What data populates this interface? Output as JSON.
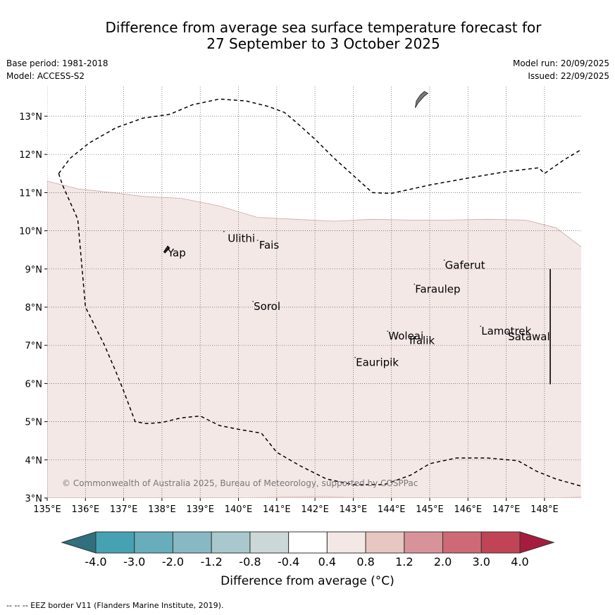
{
  "title": {
    "line1": "Difference from average sea surface temperature forecast for",
    "line2": "27 September to 3 October 2025"
  },
  "meta": {
    "base_period": "Base period: 1981-2018",
    "model": "Model: ACCESS-S2",
    "model_run": "Model run: 20/09/2025",
    "issued": "Issued: 22/09/2025"
  },
  "map": {
    "lon_range": [
      135,
      149
    ],
    "lat_range": [
      3,
      13.8
    ],
    "lon_ticks": [
      {
        "v": 135,
        "label": "135°E"
      },
      {
        "v": 136,
        "label": "136°E"
      },
      {
        "v": 137,
        "label": "137°E"
      },
      {
        "v": 138,
        "label": "138°E"
      },
      {
        "v": 139,
        "label": "139°E"
      },
      {
        "v": 140,
        "label": "140°E"
      },
      {
        "v": 141,
        "label": "141°E"
      },
      {
        "v": 142,
        "label": "142°E"
      },
      {
        "v": 143,
        "label": "143°E"
      },
      {
        "v": 144,
        "label": "144°E"
      },
      {
        "v": 145,
        "label": "145°E"
      },
      {
        "v": 146,
        "label": "146°E"
      },
      {
        "v": 147,
        "label": "147°E"
      },
      {
        "v": 148,
        "label": "148°E"
      }
    ],
    "lat_ticks": [
      {
        "v": 3,
        "label": "3°N"
      },
      {
        "v": 4,
        "label": "4°N"
      },
      {
        "v": 5,
        "label": "5°N"
      },
      {
        "v": 6,
        "label": "6°N"
      },
      {
        "v": 7,
        "label": "7°N"
      },
      {
        "v": 8,
        "label": "8°N"
      },
      {
        "v": 9,
        "label": "9°N"
      },
      {
        "v": 10,
        "label": "10°N"
      },
      {
        "v": 11,
        "label": "11°N"
      },
      {
        "v": 12,
        "label": "12°N"
      },
      {
        "v": 13,
        "label": "13°N"
      }
    ],
    "anomaly_region": {
      "category": "0.4 to 0.8",
      "color": "#f4e8e6",
      "edge_color": "#c9a9a6",
      "boundary": [
        [
          135,
          11.3
        ],
        [
          135.8,
          11.1
        ],
        [
          136.7,
          11.0
        ],
        [
          137.5,
          10.9
        ],
        [
          138.5,
          10.85
        ],
        [
          139.5,
          10.65
        ],
        [
          140.5,
          10.35
        ],
        [
          141.5,
          10.3
        ],
        [
          142.5,
          10.25
        ],
        [
          143.5,
          10.3
        ],
        [
          144.5,
          10.28
        ],
        [
          145.5,
          10.28
        ],
        [
          146.5,
          10.3
        ],
        [
          147.5,
          10.28
        ],
        [
          148.3,
          10.08
        ],
        [
          149,
          9.55
        ],
        [
          149,
          3
        ],
        [
          135,
          3
        ]
      ]
    },
    "secondary_region": {
      "color": "#ead3d0",
      "boundary": [
        [
          140,
          3
        ],
        [
          141.2,
          3.05
        ],
        [
          142.3,
          3.06
        ],
        [
          143.2,
          3.02
        ],
        [
          143.5,
          3
        ],
        [
          140,
          3
        ]
      ]
    },
    "south_edge_region": {
      "color": "#ead3d0",
      "boundary": [
        [
          148.2,
          3
        ],
        [
          149,
          3.05
        ],
        [
          149,
          3
        ],
        [
          148.2,
          3
        ]
      ]
    },
    "eez_border": {
      "color": "#000000",
      "north_line": [
        [
          135.3,
          11.5
        ],
        [
          135.6,
          11.9
        ],
        [
          136.1,
          12.3
        ],
        [
          136.8,
          12.7
        ],
        [
          137.5,
          12.95
        ],
        [
          138.2,
          13.05
        ],
        [
          138.8,
          13.3
        ],
        [
          139.5,
          13.45
        ],
        [
          140.2,
          13.4
        ],
        [
          140.8,
          13.25
        ],
        [
          141.2,
          13.1
        ],
        [
          141.5,
          12.85
        ],
        [
          142.0,
          12.4
        ],
        [
          142.5,
          11.9
        ],
        [
          143.0,
          11.45
        ],
        [
          143.5,
          11.0
        ],
        [
          144.0,
          10.98
        ],
        [
          145.0,
          11.2
        ],
        [
          146.0,
          11.38
        ],
        [
          147.0,
          11.55
        ],
        [
          147.85,
          11.65
        ],
        [
          148.0,
          11.5
        ],
        [
          148.5,
          11.85
        ],
        [
          149,
          12.15
        ]
      ],
      "west_line": [
        [
          135.3,
          11.5
        ],
        [
          135.4,
          11.2
        ],
        [
          135.8,
          10.3
        ],
        [
          136.0,
          8.0
        ],
        [
          136.2,
          7.6
        ],
        [
          136.5,
          7.0
        ],
        [
          136.8,
          6.3
        ],
        [
          137.0,
          5.8
        ],
        [
          137.3,
          5.0
        ],
        [
          137.6,
          4.95
        ],
        [
          138.0,
          4.98
        ],
        [
          138.5,
          5.1
        ],
        [
          139.0,
          5.15
        ],
        [
          139.5,
          4.9
        ],
        [
          140.0,
          4.8
        ],
        [
          140.6,
          4.7
        ],
        [
          141.0,
          4.2
        ],
        [
          141.6,
          3.85
        ],
        [
          142.3,
          3.5
        ],
        [
          143.0,
          3.35
        ],
        [
          143.8,
          3.35
        ],
        [
          144.5,
          3.6
        ],
        [
          145.0,
          3.9
        ],
        [
          145.7,
          4.05
        ],
        [
          146.5,
          4.05
        ],
        [
          147.3,
          3.98
        ],
        [
          147.8,
          3.7
        ],
        [
          148.3,
          3.5
        ],
        [
          149,
          3.3
        ]
      ]
    },
    "vertical_line": {
      "lon": 148.15,
      "lat_from": 5.98,
      "lat_to": 9.0
    },
    "guam": [
      [
        144.62,
        13.22
      ],
      [
        144.7,
        13.35
      ],
      [
        144.85,
        13.52
      ],
      [
        144.95,
        13.6
      ],
      [
        144.86,
        13.65
      ],
      [
        144.75,
        13.55
      ],
      [
        144.65,
        13.4
      ]
    ],
    "yap": [
      [
        138.05,
        9.45
      ],
      [
        138.15,
        9.6
      ],
      [
        138.2,
        9.55
      ],
      [
        138.08,
        9.42
      ]
    ],
    "places": [
      {
        "name": "Ulithi",
        "lon": 139.7,
        "lat": 9.93,
        "mark_lon": 139.62,
        "mark_lat": 9.98
      },
      {
        "name": "Fais",
        "lon": 140.52,
        "lat": 9.75,
        "mark_lon": 140.5,
        "mark_lat": 9.75
      },
      {
        "name": "Yap",
        "lon": 138.13,
        "lat": 9.55,
        "mark_lon": 138.13,
        "mark_lat": 9.55
      },
      {
        "name": "Gaferut",
        "lon": 145.38,
        "lat": 9.23,
        "mark_lon": 145.38,
        "mark_lat": 9.23
      },
      {
        "name": "Faraulep",
        "lon": 144.6,
        "lat": 8.6,
        "mark_lon": 144.6,
        "mark_lat": 8.6
      },
      {
        "name": "Sorol",
        "lon": 140.38,
        "lat": 8.15,
        "mark_lon": 140.38,
        "mark_lat": 8.15
      },
      {
        "name": "Lamotrek",
        "lon": 146.33,
        "lat": 7.5,
        "mark_lon": 146.33,
        "mark_lat": 7.5
      },
      {
        "name": "Satawal",
        "lon": 147.03,
        "lat": 7.35,
        "mark_lon": 147.03,
        "mark_lat": 7.35
      },
      {
        "name": "Woleai",
        "lon": 143.9,
        "lat": 7.37,
        "mark_lon": 143.9,
        "mark_lat": 7.37
      },
      {
        "name": "Ifalik",
        "lon": 144.45,
        "lat": 7.25,
        "mark_lon": 144.45,
        "mark_lat": 7.25
      },
      {
        "name": "Eauripik",
        "lon": 143.05,
        "lat": 6.68,
        "mark_lon": 143.05,
        "mark_lat": 6.68
      }
    ],
    "copyright": "© Commonwealth of Australia 2025, Bureau of Meteorology, supported by COSPPac"
  },
  "colorbar": {
    "label": "Difference from average (°C)",
    "ticks": [
      "-4.0",
      "-3.0",
      "-2.0",
      "-1.2",
      "-0.8",
      "-0.4",
      "0.4",
      "0.8",
      "1.2",
      "2.0",
      "3.0",
      "4.0"
    ],
    "under_color": "#2f6f7e",
    "over_color": "#a51c3e",
    "colors": [
      "#46a2b3",
      "#67adbb",
      "#88b8c3",
      "#a8c8cd",
      "#ccd7d8",
      "#ffffff",
      "#f4e8e6",
      "#e8c6c1",
      "#d8939a",
      "#cd6a76",
      "#c04455"
    ]
  },
  "footnote": "--  --  -- EEZ border V11 (Flanders Marine Institute, 2019)."
}
